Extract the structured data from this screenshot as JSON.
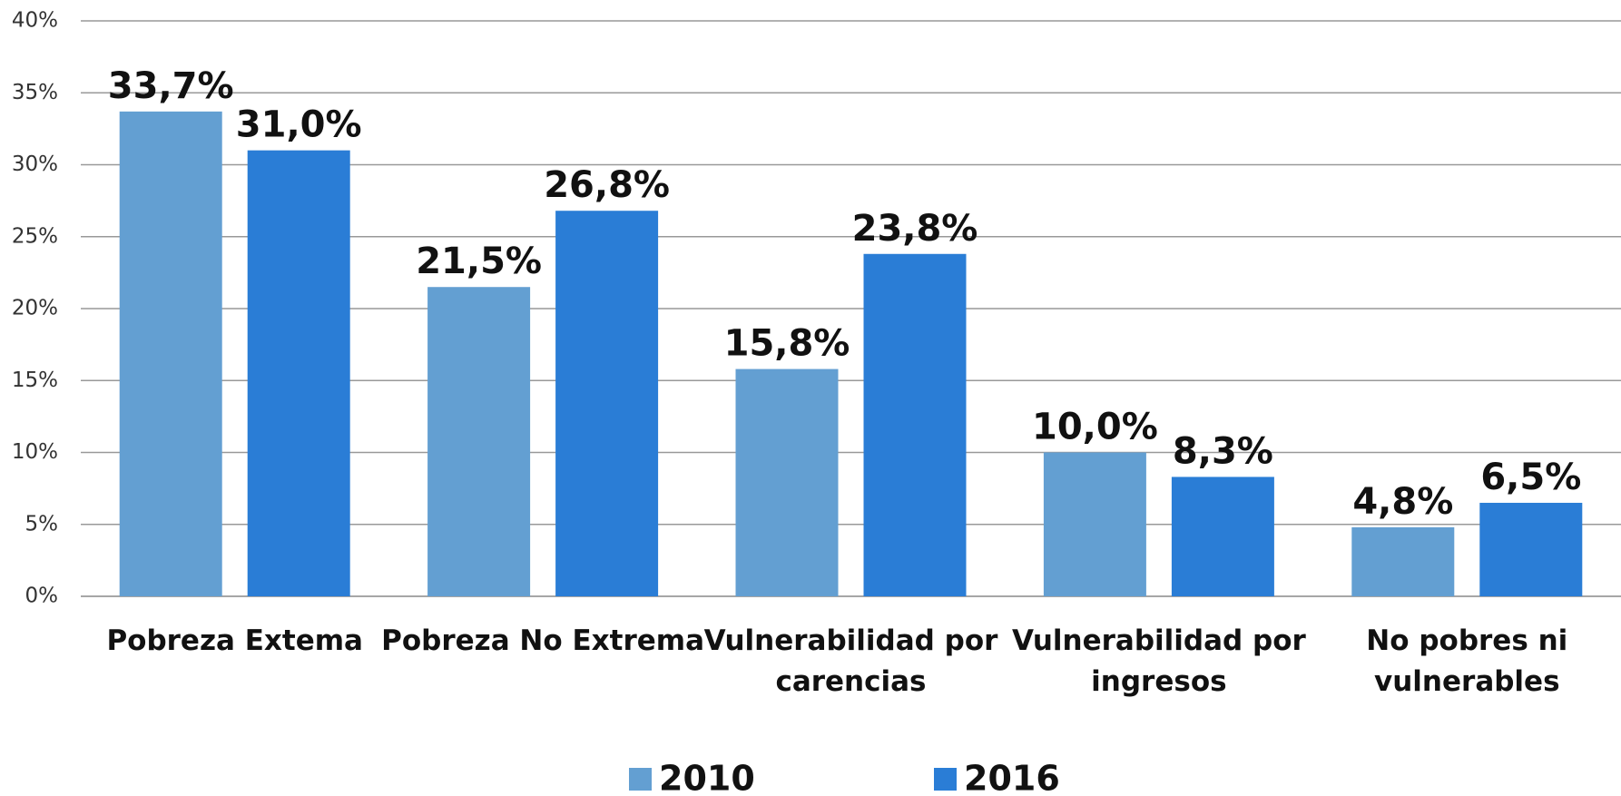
{
  "chart_data": {
    "type": "bar",
    "categories": [
      "Pobreza Extema",
      "Pobreza No Extrema",
      "Vulnerabilidad por carencias",
      "Vulnerabilidad por ingresos",
      "No pobres ni vulnerables"
    ],
    "series": [
      {
        "name": "2010",
        "color": "#639fd2",
        "values": [
          33.7,
          21.5,
          15.8,
          10.0,
          4.8
        ],
        "value_labels": [
          "33,7%",
          "21,5%",
          "15,8%",
          "10,0%",
          "4,8%"
        ]
      },
      {
        "name": "2016",
        "color": "#2a7dd6",
        "values": [
          31.0,
          26.8,
          23.8,
          8.3,
          6.5
        ],
        "value_labels": [
          "31,0%",
          "26,8%",
          "23,8%",
          "8,3%",
          "6,5%"
        ]
      }
    ],
    "ylim": [
      0,
      40
    ],
    "yticks": [
      {
        "value": 0,
        "label": "0%"
      },
      {
        "value": 5,
        "label": "5%"
      },
      {
        "value": 10,
        "label": "10%"
      },
      {
        "value": 15,
        "label": "15%"
      },
      {
        "value": 20,
        "label": "20%"
      },
      {
        "value": 25,
        "label": "25%"
      },
      {
        "value": 30,
        "label": "30%"
      },
      {
        "value": 35,
        "label": "35%"
      },
      {
        "value": 40,
        "label": "40%"
      }
    ],
    "grid": true,
    "legend": "bottom"
  }
}
